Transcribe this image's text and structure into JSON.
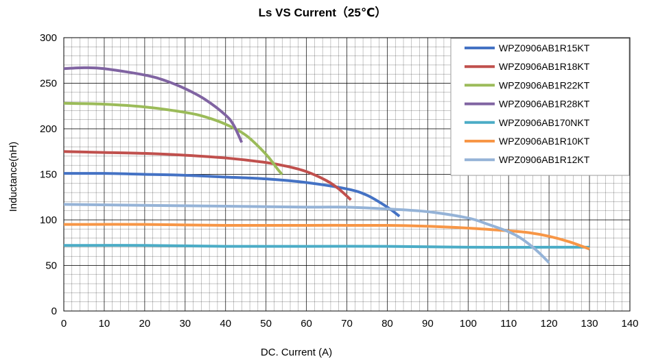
{
  "chart_data": {
    "type": "line",
    "title": "Ls  VS  Current（25℃）",
    "xlabel": "DC. Current (A)",
    "ylabel": "Inductance(nH)",
    "xlim": [
      0,
      140
    ],
    "ylim": [
      0,
      300
    ],
    "x_ticks": [
      "0",
      "10",
      "20",
      "30",
      "40",
      "50",
      "60",
      "70",
      "80",
      "90",
      "100",
      "110",
      "120",
      "130",
      "140"
    ],
    "y_ticks": [
      "0",
      "50",
      "100",
      "150",
      "200",
      "250",
      "300"
    ],
    "grid": true,
    "legend_position": "top-right",
    "series": [
      {
        "name": "WPZ0906AB1R15KT",
        "color": "#4472C4",
        "points": [
          [
            0,
            151
          ],
          [
            10,
            151
          ],
          [
            20,
            150
          ],
          [
            30,
            149
          ],
          [
            40,
            147
          ],
          [
            50,
            145
          ],
          [
            60,
            141
          ],
          [
            70,
            134
          ],
          [
            75,
            127
          ],
          [
            80,
            114
          ],
          [
            83,
            104
          ]
        ]
      },
      {
        "name": "WPZ0906AB1R18KT",
        "color": "#C0504D",
        "points": [
          [
            0,
            175
          ],
          [
            10,
            174
          ],
          [
            20,
            173
          ],
          [
            30,
            171
          ],
          [
            40,
            168
          ],
          [
            50,
            163
          ],
          [
            55,
            159
          ],
          [
            60,
            153
          ],
          [
            65,
            143
          ],
          [
            68,
            134
          ],
          [
            71,
            122
          ]
        ]
      },
      {
        "name": "WPZ0906AB1R22KT",
        "color": "#9BBB59",
        "points": [
          [
            0,
            228
          ],
          [
            10,
            227
          ],
          [
            20,
            224
          ],
          [
            30,
            218
          ],
          [
            35,
            213
          ],
          [
            40,
            205
          ],
          [
            45,
            193
          ],
          [
            50,
            172
          ],
          [
            53,
            155
          ],
          [
            54,
            150
          ]
        ]
      },
      {
        "name": "WPZ0906AB1R28KT",
        "color": "#8064A2",
        "points": [
          [
            0,
            266
          ],
          [
            5,
            267
          ],
          [
            10,
            266
          ],
          [
            20,
            259
          ],
          [
            25,
            253
          ],
          [
            30,
            244
          ],
          [
            35,
            232
          ],
          [
            40,
            215
          ],
          [
            42,
            204
          ],
          [
            44,
            185
          ]
        ]
      },
      {
        "name": "WPZ0906AB170NKT",
        "color": "#4BACC6",
        "points": [
          [
            0,
            72
          ],
          [
            20,
            72
          ],
          [
            40,
            71
          ],
          [
            60,
            71
          ],
          [
            80,
            71
          ],
          [
            100,
            70
          ],
          [
            120,
            70
          ],
          [
            130,
            70
          ]
        ]
      },
      {
        "name": "WPZ0906AB1R10KT",
        "color": "#F79646",
        "points": [
          [
            0,
            95
          ],
          [
            20,
            95
          ],
          [
            40,
            94
          ],
          [
            60,
            94
          ],
          [
            80,
            94
          ],
          [
            90,
            93
          ],
          [
            100,
            91
          ],
          [
            110,
            88
          ],
          [
            115,
            86
          ],
          [
            120,
            82
          ],
          [
            125,
            76
          ],
          [
            130,
            68
          ]
        ]
      },
      {
        "name": "WPZ0906AB1R12KT",
        "color": "#95B3D7",
        "points": [
          [
            0,
            117
          ],
          [
            20,
            116
          ],
          [
            40,
            115
          ],
          [
            60,
            114
          ],
          [
            70,
            114
          ],
          [
            80,
            112
          ],
          [
            90,
            109
          ],
          [
            100,
            102
          ],
          [
            105,
            95
          ],
          [
            110,
            87
          ],
          [
            113,
            80
          ],
          [
            116,
            70
          ],
          [
            118,
            62
          ],
          [
            120,
            53
          ]
        ]
      }
    ]
  }
}
